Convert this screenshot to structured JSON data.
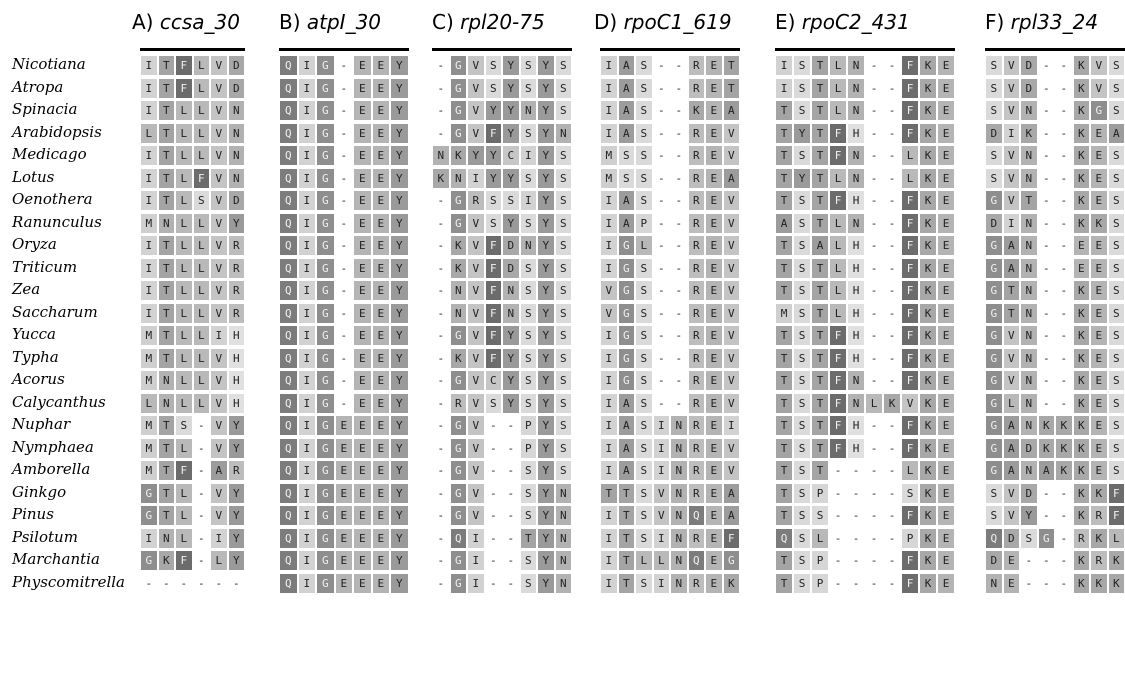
{
  "species": [
    "Nicotiana",
    "Atropa",
    "Spinacia",
    "Arabidopsis",
    "Medicago",
    "Lotus",
    "Oenothera",
    "Ranunculus",
    "Oryza",
    "Triticum",
    "Zea",
    "Saccharum",
    "Yucca",
    "Typha",
    "Acorus",
    "Calycanthus",
    "Nuphar",
    "Nymphaea",
    "Amborella",
    "Ginkgo",
    "Pinus",
    "Psilotum",
    "Marchantia",
    "Physcomitrella"
  ],
  "panels": [
    {
      "letter": "A)",
      "gene": "ccsa_30",
      "rows": [
        "ITFLVD",
        "ITFLVD",
        "ITLLVN",
        "LTLLVN",
        "ITLLVN",
        "ITLFVN",
        "ITLSVD",
        "MNLLVY",
        "ITLLVR",
        "ITLLVR",
        "ITLLVR",
        "ITLLVR",
        "MTLLIH",
        "MTLLVH",
        "MNLLVH",
        "LNLLVH",
        "MTS-VY",
        "MTL-VY",
        "MTF-AR",
        "GTL-VY",
        "GTL-VY",
        "INL-IY",
        "GKF-LY",
        "------"
      ]
    },
    {
      "letter": "B)",
      "gene": "atpI_30",
      "rows": [
        "QIG-EEY",
        "QIG-EEY",
        "QIG-EEY",
        "QIG-EEY",
        "QIG-EEY",
        "QIG-EEY",
        "QIG-EEY",
        "QIG-EEY",
        "QIG-EEY",
        "QIG-EEY",
        "QIG-EEY",
        "QIG-EEY",
        "QIG-EEY",
        "QIG-EEY",
        "QIG-EEY",
        "QIG-EEY",
        "QIGEEEY",
        "QIGEEEY",
        "QIGEEEY",
        "QIGEEEY",
        "QIGEEEY",
        "QIGEEEY",
        "QIGEEEY",
        "QIGEEEY"
      ]
    },
    {
      "letter": "C)",
      "gene": "rpl20-75",
      "rows": [
        "-GVSYSYS",
        "-GVSYSYS",
        "-GVYYNYS",
        "-GVFYSYN",
        "NKYYCIYS",
        "KNIYYSYS",
        "-GRSSIYS",
        "-GVSYSYS",
        "-KVFDNYS",
        "-KVFDSYS",
        "-NVFNSYS",
        "-NVFNSYS",
        "-GVFYSYS",
        "-KVFYSYS",
        "-GVCYSYS",
        "-RVSYSYS",
        "-GV--PYS",
        "-GV--PYS",
        "-GV--SYS",
        "-GV--SYN",
        "-GV--SYN",
        "-QI--TYN",
        "-GI--SYN",
        "-GI--SYN"
      ]
    },
    {
      "letter": "D)",
      "gene": "rpoC1_619",
      "rows": [
        "IAS--RET",
        "IAS--RET",
        "IAS--KEA",
        "IAS--REV",
        "MSS--REV",
        "MSS--REA",
        "IAS--REV",
        "IAP--REV",
        "IGL--REV",
        "IGS--REV",
        "VGS--REV",
        "VGS--REV",
        "IGS--REV",
        "IGS--REV",
        "IGS--REV",
        "IAS--REV",
        "IASINREI",
        "IASINREV",
        "IASINREV",
        "TTSVNREA",
        "ITSVNQEA",
        "ITSINREF",
        "ITLLNQEG",
        "ITSINREK"
      ]
    },
    {
      "letter": "E)",
      "gene": "rpoC2_431",
      "rows": [
        "ISTLN--FKE",
        "ISTLN--FKE",
        "TSTLN--FKE",
        "TYTFH--FKE",
        "TSTFN--LKE",
        "TYTLN--LKE",
        "TSTFH--FKE",
        "ASTLN--FKE",
        "TSALH--FKE",
        "TSTLH--FKE",
        "TSTLH--FKE",
        "MSTLH--FKE",
        "TSTFH--FKE",
        "TSTFH--FKE",
        "TSTFN--FKE",
        "TSTFNLKVKE",
        "TSTFH--FKE",
        "TSTFH--FKE",
        "TST----LKE",
        "TSP----SKE",
        "TSS----FKE",
        "QSL----PKE",
        "TSP----FKE",
        "TSP----FKE"
      ]
    },
    {
      "letter": "F)",
      "gene": "rpl33_24",
      "rows": [
        "SVD--KVS",
        "SVD--KVS",
        "SVN--KGS",
        "DIK--KEA",
        "SVN--KES",
        "SVN--KES",
        "GVT--KES",
        "DIN--KKS",
        "GAN--EES",
        "GAN--EES",
        "GTN--KES",
        "GTN--KES",
        "GVN--KES",
        "GVN--KES",
        "GVN--KES",
        "GLN--KES",
        "GANKKKES",
        "GADKKKES",
        "GANAKKES",
        "SVD--KKF",
        "SVY--KRF",
        "QDSG-RKL",
        "DE---KRK",
        "NE---KKK"
      ]
    }
  ]
}
